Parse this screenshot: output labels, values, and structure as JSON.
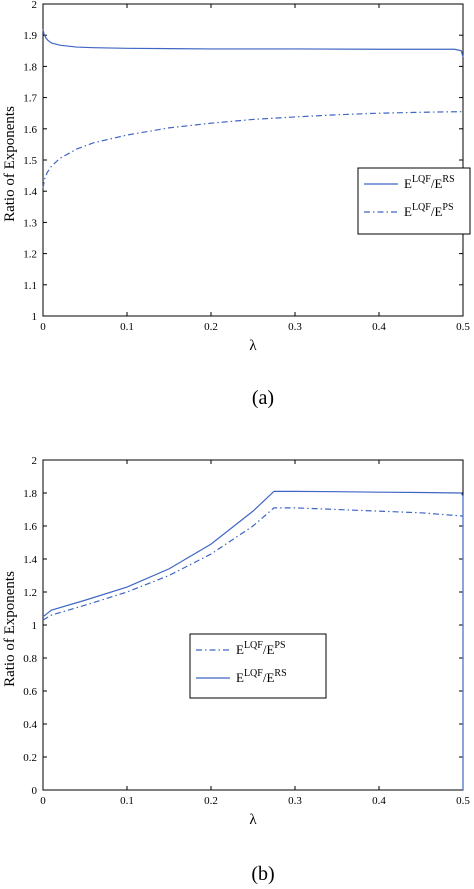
{
  "colors": {
    "series": "#3f66c4",
    "axis": "#000000",
    "legend_border": "#000000"
  },
  "chart_data": [
    {
      "type": "line",
      "panel_caption": "(a)",
      "xlabel": "λ",
      "ylabel": "Ratio of Exponents",
      "xlim": [
        0,
        0.5
      ],
      "ylim": [
        1,
        2
      ],
      "xticks": [
        "0",
        "0.1",
        "0.2",
        "0.3",
        "0.4",
        "0.5"
      ],
      "yticks": [
        "1",
        "1.1",
        "1.2",
        "1.3",
        "1.4",
        "1.5",
        "1.6",
        "1.7",
        "1.8",
        "1.9",
        "2"
      ],
      "legend_position": "right",
      "series": [
        {
          "legend_main": "E",
          "legend_sup1": "LQF",
          "legend_mid": "/E",
          "legend_sup2": "RS",
          "style": "solid",
          "x": [
            0,
            0.001,
            0.003,
            0.006,
            0.01,
            0.02,
            0.04,
            0.06,
            0.1,
            0.15,
            0.2,
            0.3,
            0.4,
            0.45,
            0.49,
            0.498,
            0.5
          ],
          "y": [
            1.92,
            1.905,
            1.893,
            1.883,
            1.875,
            1.868,
            1.862,
            1.86,
            1.858,
            1.857,
            1.856,
            1.856,
            1.855,
            1.855,
            1.855,
            1.85,
            1.83
          ]
        },
        {
          "legend_main": "E",
          "legend_sup1": "LQF",
          "legend_mid": "/E",
          "legend_sup2": "PS",
          "style": "dashdot",
          "x": [
            0,
            0.002,
            0.005,
            0.01,
            0.02,
            0.04,
            0.06,
            0.1,
            0.15,
            0.2,
            0.25,
            0.3,
            0.35,
            0.4,
            0.45,
            0.5
          ],
          "y": [
            1.41,
            1.44,
            1.46,
            1.48,
            1.505,
            1.535,
            1.555,
            1.58,
            1.603,
            1.618,
            1.63,
            1.638,
            1.645,
            1.65,
            1.653,
            1.655
          ]
        }
      ]
    },
    {
      "type": "line",
      "panel_caption": "(b)",
      "xlabel": "λ",
      "ylabel": "Ratio of Exponents",
      "xlim": [
        0,
        0.5
      ],
      "ylim": [
        0,
        2
      ],
      "xticks": [
        "0",
        "0.1",
        "0.2",
        "0.3",
        "0.4",
        "0.5"
      ],
      "yticks": [
        "0",
        "0.2",
        "0.4",
        "0.6",
        "0.8",
        "1",
        "1.2",
        "1.4",
        "1.6",
        "1.8",
        "2"
      ],
      "legend_position": "center",
      "series": [
        {
          "legend_main": "E",
          "legend_sup1": "LQF",
          "legend_mid": "/E",
          "legend_sup2": "PS",
          "style": "dashdot",
          "x": [
            0,
            0.01,
            0.05,
            0.1,
            0.15,
            0.2,
            0.25,
            0.275,
            0.3,
            0.35,
            0.4,
            0.45,
            0.5
          ],
          "y": [
            1.03,
            1.06,
            1.12,
            1.2,
            1.3,
            1.43,
            1.6,
            1.71,
            1.71,
            1.7,
            1.69,
            1.68,
            1.66
          ]
        },
        {
          "legend_main": "E",
          "legend_sup1": "LQF",
          "legend_mid": "/E",
          "legend_sup2": "RS",
          "style": "solid",
          "x": [
            0,
            0.005,
            0.01,
            0.05,
            0.1,
            0.15,
            0.2,
            0.25,
            0.275,
            0.3,
            0.35,
            0.4,
            0.45,
            0.498,
            0.5,
            0.5
          ],
          "y": [
            1.05,
            1.07,
            1.09,
            1.15,
            1.23,
            1.34,
            1.49,
            1.69,
            1.81,
            1.81,
            1.808,
            1.805,
            1.803,
            1.8,
            1.78,
            0
          ]
        }
      ]
    }
  ]
}
